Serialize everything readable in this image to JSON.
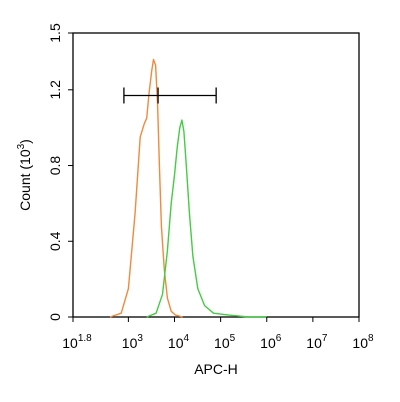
{
  "chart_data": {
    "type": "line",
    "title": "",
    "xlabel": "APC-H",
    "ylabel": "Count",
    "ylabel_unit_base": "(10",
    "ylabel_unit_exp": "3",
    "ylabel_unit_close": ")",
    "x_scale": "log",
    "xlim": [
      63,
      100000000
    ],
    "ylim": [
      0,
      1.5
    ],
    "x_ticks": [
      {
        "base": "10",
        "exp": "1.8",
        "value": 63
      },
      {
        "base": "10",
        "exp": "3",
        "value": 1000
      },
      {
        "base": "10",
        "exp": "4",
        "value": 10000
      },
      {
        "base": "10",
        "exp": "5",
        "value": 100000
      },
      {
        "base": "10",
        "exp": "6",
        "value": 1000000
      },
      {
        "base": "10",
        "exp": "7",
        "value": 10000000
      },
      {
        "base": "10",
        "exp": "8",
        "value": 100000000
      }
    ],
    "y_ticks": [
      {
        "label": "0",
        "value": 0
      },
      {
        "label": "0.4",
        "value": 0.4
      },
      {
        "label": "0.8",
        "value": 0.8
      },
      {
        "label": "1.2",
        "value": 1.2
      },
      {
        "label": "1.5",
        "value": 1.5
      }
    ],
    "grid": false,
    "gate": {
      "x_start": 800,
      "x_mid": 4400,
      "x_end": 80000,
      "y": 1.17
    },
    "series": [
      {
        "color": "#f08a3c",
        "points": [
          [
            400,
            0.0
          ],
          [
            700,
            0.02
          ],
          [
            1000,
            0.15
          ],
          [
            1400,
            0.55
          ],
          [
            1800,
            0.95
          ],
          [
            2200,
            1.02
          ],
          [
            2500,
            1.05
          ],
          [
            2800,
            1.18
          ],
          [
            3200,
            1.3
          ],
          [
            3500,
            1.36
          ],
          [
            3900,
            1.33
          ],
          [
            4300,
            1.12
          ],
          [
            4700,
            0.8
          ],
          [
            5200,
            0.48
          ],
          [
            6000,
            0.25
          ],
          [
            7000,
            0.1
          ],
          [
            8500,
            0.03
          ],
          [
            10500,
            0.01
          ],
          [
            15000,
            0.0
          ]
        ]
      },
      {
        "color": "#44cc44",
        "points": [
          [
            2500,
            0.0
          ],
          [
            4000,
            0.02
          ],
          [
            5500,
            0.12
          ],
          [
            7000,
            0.35
          ],
          [
            8500,
            0.6
          ],
          [
            10000,
            0.75
          ],
          [
            11500,
            0.9
          ],
          [
            13000,
            1.0
          ],
          [
            14500,
            1.04
          ],
          [
            16000,
            0.98
          ],
          [
            18000,
            0.8
          ],
          [
            21000,
            0.55
          ],
          [
            25000,
            0.32
          ],
          [
            32000,
            0.15
          ],
          [
            45000,
            0.06
          ],
          [
            70000,
            0.02
          ],
          [
            150000,
            0.01
          ],
          [
            400000,
            0.0
          ],
          [
            1000000,
            0.0
          ]
        ]
      }
    ]
  }
}
